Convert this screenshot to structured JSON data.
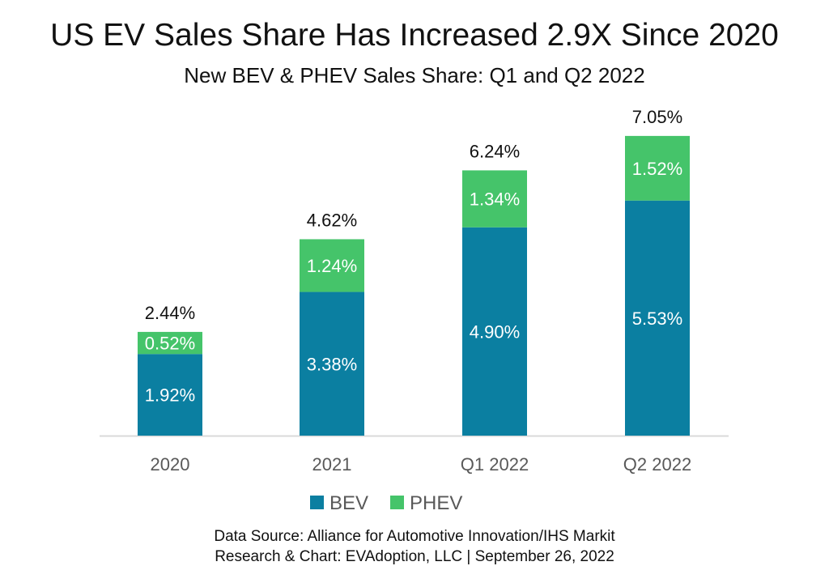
{
  "chart_data": {
    "type": "bar",
    "stacked": true,
    "title": "US EV Sales Share Has Increased 2.9X Since 2020",
    "subtitle": "New BEV & PHEV Sales Share: Q1 and Q2 2022",
    "categories": [
      "2020",
      "2021",
      "Q1 2022",
      "Q2 2022"
    ],
    "series": [
      {
        "name": "BEV",
        "color": "#0b7fa1",
        "values": [
          1.92,
          3.38,
          4.9,
          5.53
        ],
        "labels": [
          "1.92%",
          "3.38%",
          "4.90%",
          "5.53%"
        ]
      },
      {
        "name": "PHEV",
        "color": "#45c46a",
        "values": [
          0.52,
          1.24,
          1.34,
          1.52
        ],
        "labels": [
          "0.52%",
          "1.24%",
          "1.34%",
          "1.52%"
        ]
      }
    ],
    "totals": [
      "2.44%",
      "4.62%",
      "6.24%",
      "7.05%"
    ],
    "ylim": [
      0,
      7.05
    ],
    "grid": false,
    "legend": "bottom"
  },
  "footer": {
    "source": "Data Source: Alliance for Automotive Innovation/IHS Markit",
    "credit": "Research & Chart: EVAdoption, LLC | September 26, 2022"
  }
}
